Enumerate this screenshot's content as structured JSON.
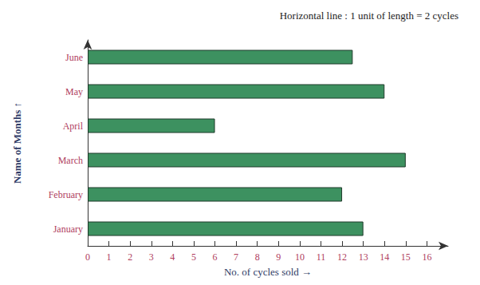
{
  "chart_data": {
    "type": "bar",
    "orientation": "horizontal",
    "title": "Horizontal line : 1 unit of length = 2 cycles",
    "x_label": "No. of cycles sold →",
    "y_label": "Name of Months ↑",
    "categories": [
      "January",
      "February",
      "March",
      "April",
      "May",
      "June"
    ],
    "values": [
      13,
      12,
      15,
      6,
      14,
      12.5
    ],
    "color": "#3d9160",
    "xlim": [
      0,
      17
    ],
    "xticks": [
      0,
      1,
      2,
      3,
      4,
      5,
      6,
      7,
      8,
      9,
      10,
      11,
      12,
      13,
      14,
      15,
      16
    ],
    "grid": false
  }
}
